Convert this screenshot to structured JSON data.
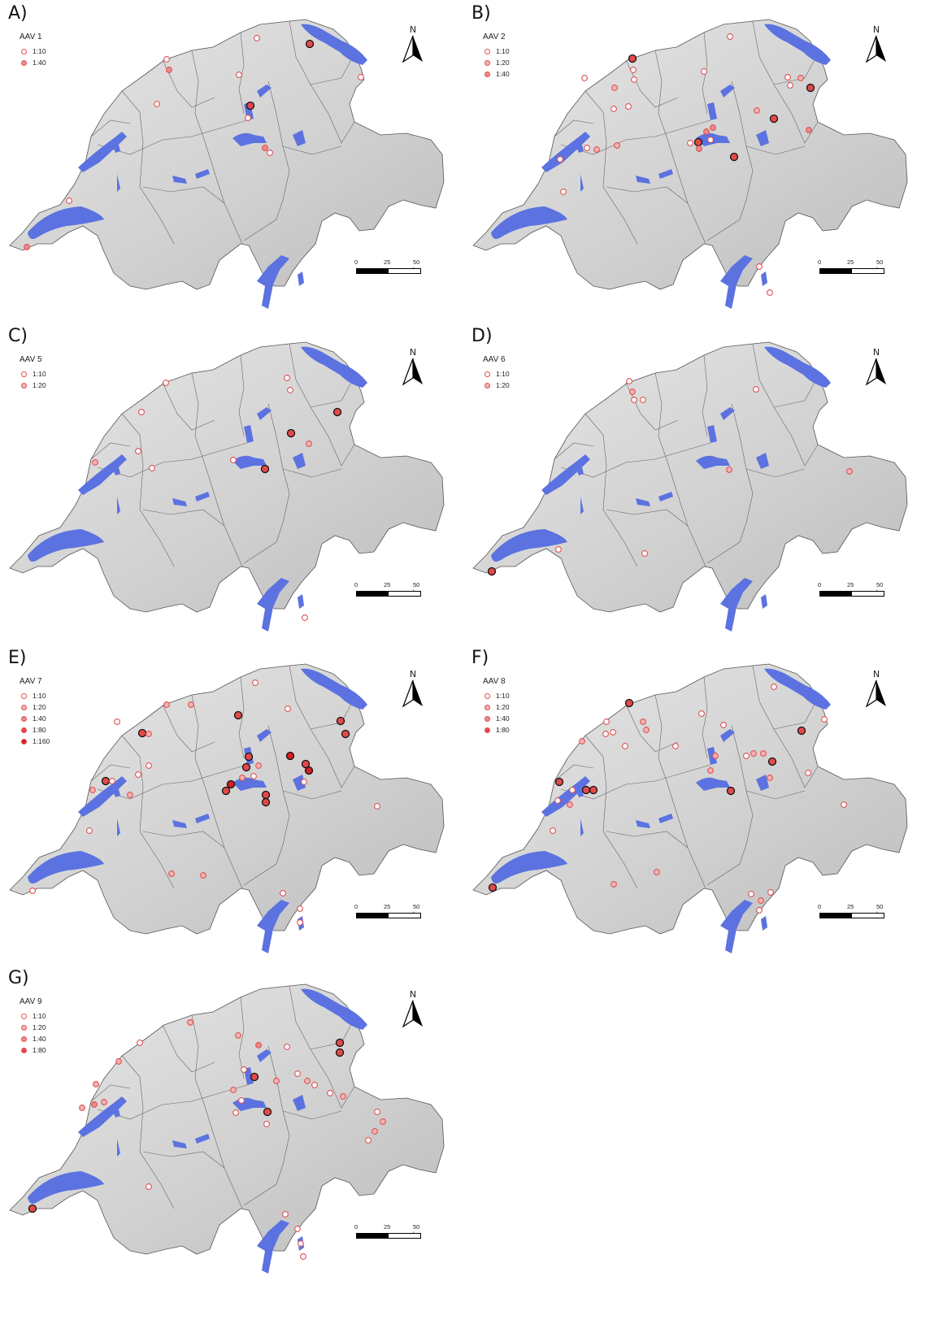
{
  "panels": [
    {
      "letter": "A)",
      "title": "AAV 1",
      "legend": [
        {
          "label": "1:10",
          "level": 1
        },
        {
          "label": "1:40",
          "level": 3
        }
      ],
      "points": [
        [
          316,
          47,
          1
        ],
        [
          381,
          54,
          4
        ],
        [
          205,
          73,
          1
        ],
        [
          208,
          86,
          3
        ],
        [
          294,
          92,
          1
        ],
        [
          444,
          95,
          1
        ],
        [
          193,
          128,
          1
        ],
        [
          308,
          130,
          4
        ],
        [
          305,
          145,
          1
        ],
        [
          326,
          182,
          3
        ],
        [
          332,
          188,
          1
        ],
        [
          85,
          247,
          1
        ],
        [
          33,
          304,
          3
        ]
      ]
    },
    {
      "letter": "B)",
      "title": "AAV 2",
      "legend": [
        {
          "label": "1:10",
          "level": 1
        },
        {
          "label": "1:20",
          "level": 2
        },
        {
          "label": "1:40",
          "level": 3
        }
      ],
      "points": [
        [
          898,
          45,
          1
        ],
        [
          778,
          72,
          4
        ],
        [
          779,
          86,
          1
        ],
        [
          780,
          98,
          1
        ],
        [
          756,
          108,
          2
        ],
        [
          866,
          88,
          1
        ],
        [
          719,
          96,
          1
        ],
        [
          969,
          95,
          1
        ],
        [
          985,
          96,
          2
        ],
        [
          972,
          105,
          1
        ],
        [
          997,
          108,
          4
        ],
        [
          773,
          131,
          1
        ],
        [
          755,
          134,
          1
        ],
        [
          931,
          136,
          2
        ],
        [
          952,
          146,
          4
        ],
        [
          877,
          157,
          3
        ],
        [
          869,
          162,
          3
        ],
        [
          859,
          175,
          4
        ],
        [
          849,
          176,
          1
        ],
        [
          874,
          172,
          1
        ],
        [
          860,
          183,
          3
        ],
        [
          903,
          193,
          4
        ],
        [
          995,
          160,
          3
        ],
        [
          759,
          179,
          2
        ],
        [
          734,
          184,
          2
        ],
        [
          722,
          182,
          1
        ],
        [
          689,
          196,
          1
        ],
        [
          693,
          236,
          1
        ],
        [
          934,
          328,
          1
        ],
        [
          947,
          360,
          1
        ]
      ]
    },
    {
      "letter": "C)",
      "title": "AAV 5",
      "legend": [
        {
          "label": "1:10",
          "level": 1
        },
        {
          "label": "1:20",
          "level": 2
        }
      ],
      "points": [
        [
          204,
          471,
          1
        ],
        [
          353,
          465,
          1
        ],
        [
          357,
          480,
          1
        ],
        [
          174,
          507,
          1
        ],
        [
          358,
          533,
          4
        ],
        [
          415,
          507,
          4
        ],
        [
          380,
          546,
          2
        ],
        [
          170,
          555,
          1
        ],
        [
          287,
          566,
          1
        ],
        [
          326,
          577,
          4
        ],
        [
          187,
          576,
          1
        ],
        [
          117,
          569,
          2
        ],
        [
          375,
          760,
          1
        ]
      ]
    },
    {
      "letter": "D)",
      "title": "AAV 6",
      "legend": [
        {
          "label": "1:10",
          "level": 1
        },
        {
          "label": "1:20",
          "level": 2
        }
      ],
      "points": [
        [
          774,
          469,
          1
        ],
        [
          778,
          482,
          2
        ],
        [
          780,
          492,
          1
        ],
        [
          791,
          492,
          1
        ],
        [
          930,
          479,
          1
        ],
        [
          897,
          578,
          2
        ],
        [
          1045,
          580,
          2
        ],
        [
          687,
          676,
          1
        ],
        [
          793,
          681,
          1
        ],
        [
          605,
          703,
          4
        ]
      ]
    },
    {
      "letter": "E)",
      "title": "AAV 7",
      "legend": [
        {
          "label": "1:10",
          "level": 1
        },
        {
          "label": "1:20",
          "level": 2
        },
        {
          "label": "1:40",
          "level": 3
        },
        {
          "label": "1:80",
          "level": 4
        },
        {
          "label": "1:160",
          "level": 5
        }
      ],
      "points": [
        [
          314,
          840,
          1
        ],
        [
          205,
          867,
          2
        ],
        [
          235,
          867,
          2
        ],
        [
          293,
          880,
          4
        ],
        [
          354,
          872,
          1
        ],
        [
          144,
          888,
          1
        ],
        [
          175,
          902,
          4
        ],
        [
          183,
          903,
          2
        ],
        [
          419,
          887,
          4
        ],
        [
          425,
          903,
          4
        ],
        [
          357,
          930,
          5
        ],
        [
          306,
          931,
          4
        ],
        [
          303,
          944,
          4
        ],
        [
          376,
          940,
          4
        ],
        [
          380,
          948,
          5
        ],
        [
          318,
          942,
          2
        ],
        [
          298,
          957,
          2
        ],
        [
          312,
          955,
          1
        ],
        [
          130,
          961,
          4
        ],
        [
          138,
          961,
          1
        ],
        [
          170,
          953,
          1
        ],
        [
          183,
          942,
          1
        ],
        [
          284,
          965,
          5
        ],
        [
          278,
          973,
          4
        ],
        [
          327,
          978,
          4
        ],
        [
          327,
          987,
          4
        ],
        [
          374,
          962,
          1
        ],
        [
          114,
          972,
          2
        ],
        [
          160,
          978,
          2
        ],
        [
          464,
          992,
          1
        ],
        [
          110,
          1022,
          1
        ],
        [
          211,
          1075,
          2
        ],
        [
          250,
          1077,
          2
        ],
        [
          40,
          1096,
          1
        ],
        [
          348,
          1099,
          1
        ],
        [
          369,
          1118,
          1
        ],
        [
          369,
          1135,
          1
        ]
      ]
    },
    {
      "letter": "F)",
      "title": "AAV 8",
      "legend": [
        {
          "label": "1:10",
          "level": 1
        },
        {
          "label": "1:20",
          "level": 2
        },
        {
          "label": "1:40",
          "level": 3
        },
        {
          "label": "1:80",
          "level": 4
        }
      ],
      "points": [
        [
          952,
          845,
          1
        ],
        [
          774,
          865,
          4
        ],
        [
          863,
          878,
          1
        ],
        [
          890,
          892,
          1
        ],
        [
          1014,
          885,
          1
        ],
        [
          986,
          899,
          4
        ],
        [
          746,
          888,
          1
        ],
        [
          791,
          888,
          2
        ],
        [
          795,
          898,
          2
        ],
        [
          745,
          903,
          1
        ],
        [
          754,
          901,
          1
        ],
        [
          769,
          918,
          1
        ],
        [
          716,
          912,
          2
        ],
        [
          831,
          918,
          1
        ],
        [
          927,
          927,
          2
        ],
        [
          939,
          927,
          2
        ],
        [
          950,
          937,
          4
        ],
        [
          918,
          930,
          1
        ],
        [
          880,
          930,
          2
        ],
        [
          874,
          948,
          2
        ],
        [
          899,
          973,
          4
        ],
        [
          947,
          957,
          2
        ],
        [
          994,
          951,
          1
        ],
        [
          688,
          962,
          4
        ],
        [
          721,
          972,
          4
        ],
        [
          730,
          972,
          4
        ],
        [
          704,
          972,
          1
        ],
        [
          686,
          985,
          1
        ],
        [
          701,
          990,
          2
        ],
        [
          680,
          1022,
          1
        ],
        [
          1038,
          990,
          1
        ],
        [
          606,
          1092,
          4
        ],
        [
          755,
          1088,
          2
        ],
        [
          808,
          1073,
          2
        ],
        [
          924,
          1100,
          1
        ],
        [
          936,
          1108,
          2
        ],
        [
          934,
          1120,
          1
        ],
        [
          948,
          1098,
          1
        ]
      ]
    },
    {
      "letter": "G)",
      "title": "AAV 9",
      "legend": [
        {
          "label": "1:10",
          "level": 1
        },
        {
          "label": "1:20",
          "level": 2
        },
        {
          "label": "1:40",
          "level": 3
        },
        {
          "label": "1:80",
          "level": 4
        }
      ],
      "points": [
        [
          234,
          1258,
          2
        ],
        [
          172,
          1283,
          1
        ],
        [
          293,
          1274,
          2
        ],
        [
          318,
          1286,
          3
        ],
        [
          353,
          1288,
          1
        ],
        [
          418,
          1283,
          4
        ],
        [
          418,
          1295,
          4
        ],
        [
          146,
          1306,
          2
        ],
        [
          313,
          1325,
          4
        ],
        [
          300,
          1316,
          1
        ],
        [
          340,
          1330,
          2
        ],
        [
          366,
          1321,
          1
        ],
        [
          378,
          1330,
          2
        ],
        [
          387,
          1335,
          1
        ],
        [
          118,
          1334,
          2
        ],
        [
          406,
          1345,
          1
        ],
        [
          422,
          1349,
          2
        ],
        [
          287,
          1341,
          2
        ],
        [
          297,
          1354,
          1
        ],
        [
          128,
          1356,
          2
        ],
        [
          116,
          1359,
          3
        ],
        [
          101,
          1363,
          2
        ],
        [
          329,
          1368,
          4
        ],
        [
          328,
          1383,
          1
        ],
        [
          290,
          1369,
          1
        ],
        [
          464,
          1368,
          1
        ],
        [
          471,
          1380,
          2
        ],
        [
          461,
          1392,
          2
        ],
        [
          453,
          1403,
          1
        ],
        [
          183,
          1460,
          1
        ],
        [
          40,
          1487,
          4
        ],
        [
          351,
          1494,
          1
        ],
        [
          366,
          1512,
          1
        ],
        [
          370,
          1530,
          1
        ],
        [
          373,
          1546,
          1
        ]
      ]
    }
  ],
  "north_label": "N",
  "scale": {
    "zero": "0",
    "mid": "25",
    "end": "50 km"
  },
  "colors": {
    "lake": "#5b72e0",
    "land": "#dcdcdc",
    "marker": "#e05050"
  }
}
